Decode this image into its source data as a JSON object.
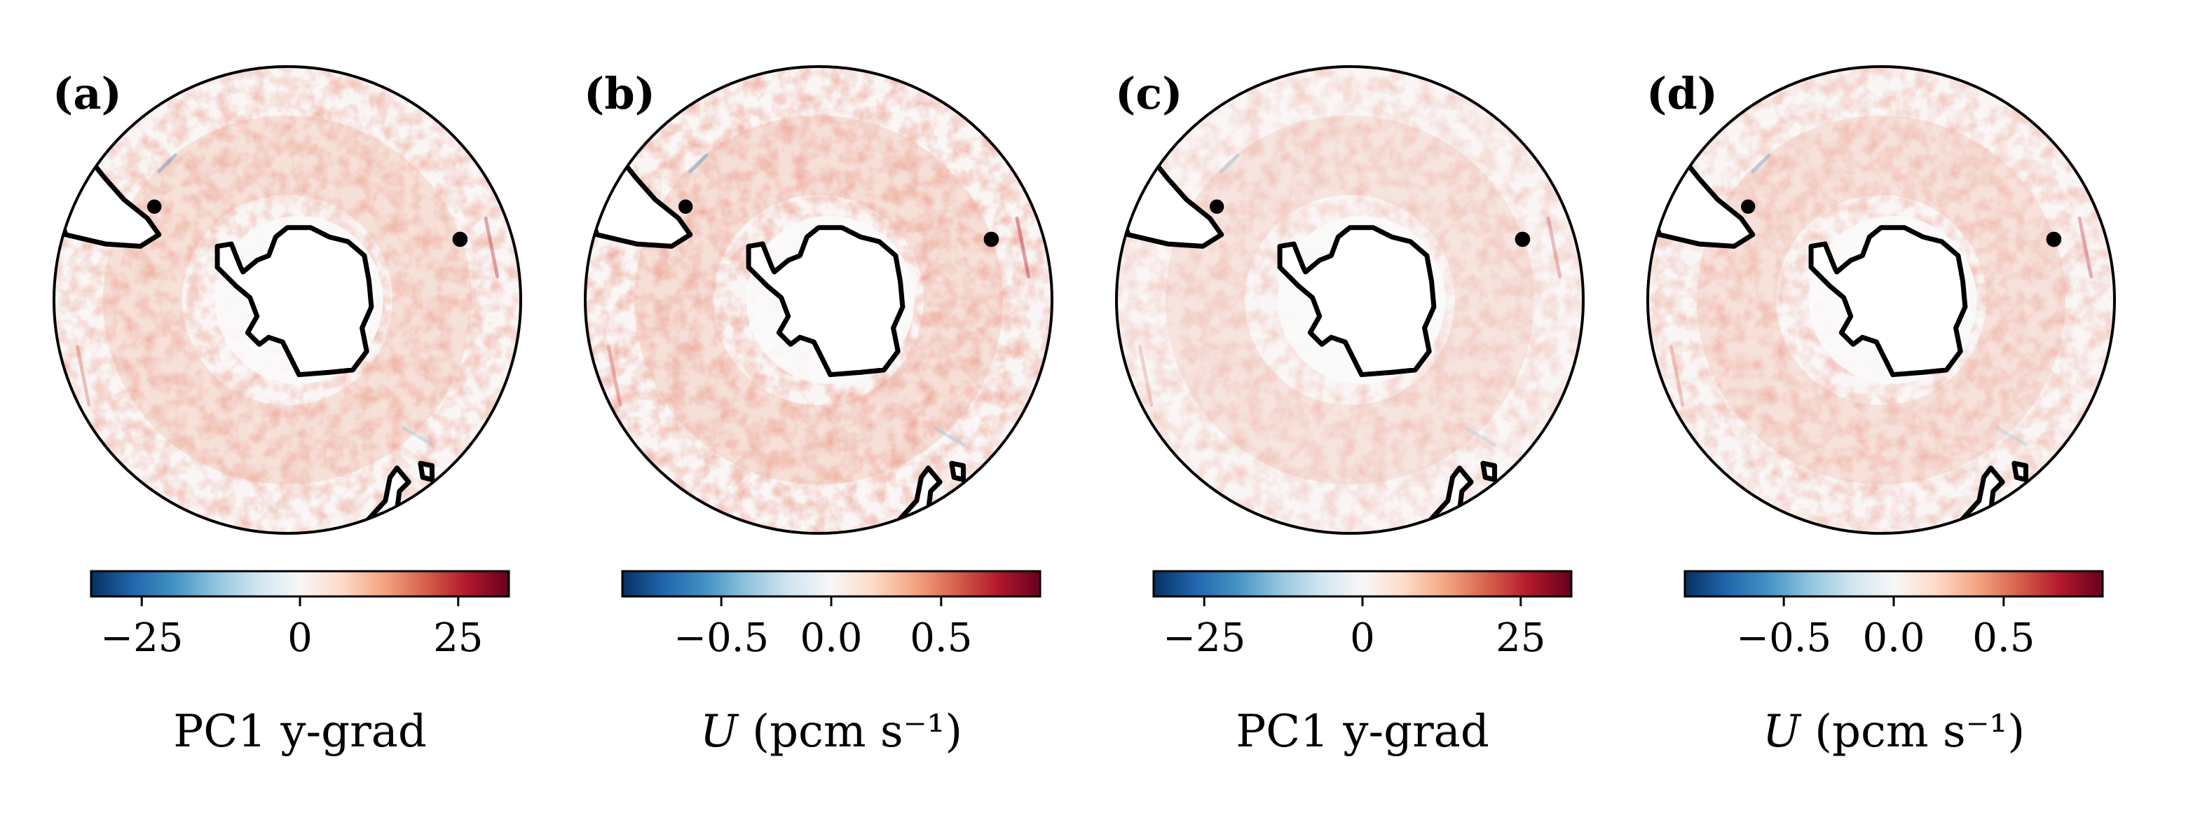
{
  "colormap": {
    "name": "RdBu_r",
    "stops": [
      "#053061",
      "#2166ac",
      "#4393c3",
      "#92c5de",
      "#d1e5f0",
      "#f7f7f7",
      "#fddbc7",
      "#f4a582",
      "#d6604d",
      "#b2182b",
      "#67001f"
    ]
  },
  "coastline_color": "#000000",
  "land_color": "#ffffff",
  "panels": [
    {
      "label": "(a)",
      "colorbar": {
        "label": "PC1 y-grad",
        "label_italic_part": "",
        "range": [
          -33,
          33
        ],
        "ticks": [
          -25,
          0,
          25
        ],
        "tick_labels": [
          "−25",
          "0",
          "25"
        ]
      },
      "pattern_strength": 0.8
    },
    {
      "label": "(b)",
      "colorbar": {
        "label": "(pcm s⁻¹)",
        "label_italic_part": "U",
        "range": [
          -0.95,
          0.95
        ],
        "ticks": [
          -0.5,
          0.0,
          0.5
        ],
        "tick_labels": [
          "−0.5",
          "0.0",
          "0.5"
        ]
      },
      "pattern_strength": 0.9
    },
    {
      "label": "(c)",
      "colorbar": {
        "label": "PC1 y-grad",
        "label_italic_part": "",
        "range": [
          -33,
          33
        ],
        "ticks": [
          -25,
          0,
          25
        ],
        "tick_labels": [
          "−25",
          "0",
          "25"
        ]
      },
      "pattern_strength": 0.55
    },
    {
      "label": "(d)",
      "colorbar": {
        "label": "(pcm s⁻¹)",
        "label_italic_part": "U",
        "range": [
          -0.95,
          0.95
        ],
        "ticks": [
          -0.5,
          0.0,
          0.5
        ],
        "tick_labels": [
          "−0.5",
          "0.0",
          "0.5"
        ]
      },
      "pattern_strength": 0.7
    }
  ]
}
